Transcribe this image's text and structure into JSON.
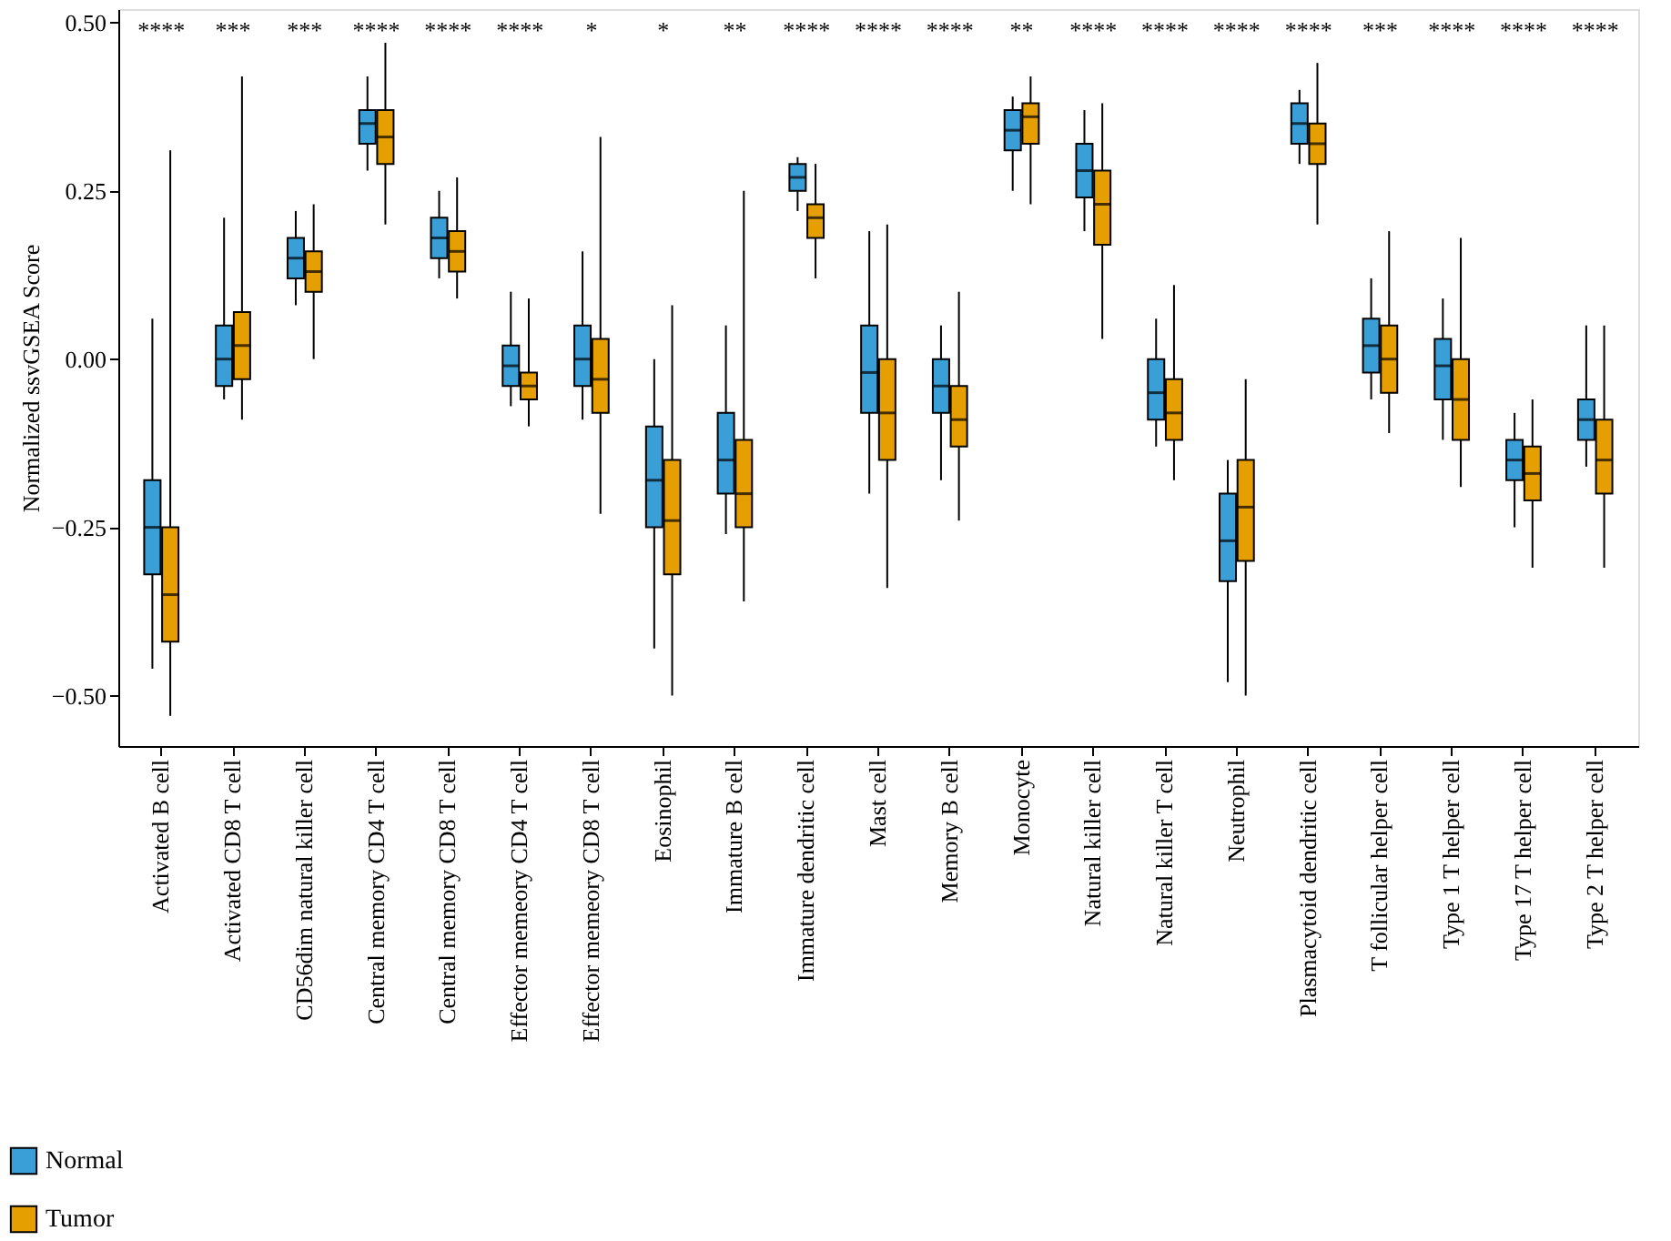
{
  "chart_data": {
    "type": "box",
    "ylabel": "Normalized ssvGSEA Score",
    "categories": [
      "Activated B cell",
      "Activated CD8 T cell",
      "CD56dim natural killer cell",
      "Central memory CD4 T cell",
      "Central memory CD8 T cell",
      "Effector memeory CD4 T cell",
      "Effector memeory CD8 T cell",
      "Eosinophil",
      "Immature B cell",
      "Immature dendritic cell",
      "Mast cell",
      "Memory B cell",
      "Monocyte",
      "Natural killer cell",
      "Natural killer T cell",
      "Neutrophil",
      "Plasmacytoid dendritic cell",
      "T follicular helper cell",
      "Type 1 T helper cell",
      "Type 17 T helper cell",
      "Type 2 T helper cell"
    ],
    "ylim": [
      -0.575,
      0.52
    ],
    "yticks": [
      {
        "value": 0.5,
        "label": "0.50"
      },
      {
        "value": 0.25,
        "label": "0.25"
      },
      {
        "value": 0,
        "label": "0.00"
      },
      {
        "value": -0.25,
        "label": "−0.25"
      },
      {
        "value": -0.5,
        "label": "−0.50"
      }
    ],
    "grid": false,
    "legend": "bottom left",
    "series": [
      {
        "name": "Normal",
        "color": "#3a9fd6",
        "boxes": [
          {
            "low": -0.46,
            "q1": -0.32,
            "median": -0.25,
            "q3": -0.18,
            "high": 0.06
          },
          {
            "low": -0.06,
            "q1": -0.04,
            "median": 0.0,
            "q3": 0.05,
            "high": 0.21
          },
          {
            "low": 0.08,
            "q1": 0.12,
            "median": 0.15,
            "q3": 0.18,
            "high": 0.22
          },
          {
            "low": 0.28,
            "q1": 0.32,
            "median": 0.35,
            "q3": 0.37,
            "high": 0.42
          },
          {
            "low": 0.12,
            "q1": 0.15,
            "median": 0.18,
            "q3": 0.21,
            "high": 0.25
          },
          {
            "low": -0.07,
            "q1": -0.04,
            "median": -0.01,
            "q3": 0.02,
            "high": 0.1
          },
          {
            "low": -0.09,
            "q1": -0.04,
            "median": 0.0,
            "q3": 0.05,
            "high": 0.16
          },
          {
            "low": -0.43,
            "q1": -0.25,
            "median": -0.18,
            "q3": -0.1,
            "high": 0.0
          },
          {
            "low": -0.26,
            "q1": -0.2,
            "median": -0.15,
            "q3": -0.08,
            "high": 0.05
          },
          {
            "low": 0.22,
            "q1": 0.25,
            "median": 0.27,
            "q3": 0.29,
            "high": 0.3
          },
          {
            "low": -0.2,
            "q1": -0.08,
            "median": -0.02,
            "q3": 0.05,
            "high": 0.19
          },
          {
            "low": -0.18,
            "q1": -0.08,
            "median": -0.04,
            "q3": 0.0,
            "high": 0.05
          },
          {
            "low": 0.25,
            "q1": 0.31,
            "median": 0.34,
            "q3": 0.37,
            "high": 0.39
          },
          {
            "low": 0.19,
            "q1": 0.24,
            "median": 0.28,
            "q3": 0.32,
            "high": 0.37
          },
          {
            "low": -0.13,
            "q1": -0.09,
            "median": -0.05,
            "q3": 0.0,
            "high": 0.06
          },
          {
            "low": -0.48,
            "q1": -0.33,
            "median": -0.27,
            "q3": -0.2,
            "high": -0.15
          },
          {
            "low": 0.29,
            "q1": 0.32,
            "median": 0.35,
            "q3": 0.38,
            "high": 0.4
          },
          {
            "low": -0.06,
            "q1": -0.02,
            "median": 0.02,
            "q3": 0.06,
            "high": 0.12
          },
          {
            "low": -0.12,
            "q1": -0.06,
            "median": -0.01,
            "q3": 0.03,
            "high": 0.09
          },
          {
            "low": -0.25,
            "q1": -0.18,
            "median": -0.15,
            "q3": -0.12,
            "high": -0.08
          },
          {
            "low": -0.16,
            "q1": -0.12,
            "median": -0.09,
            "q3": -0.06,
            "high": 0.05
          }
        ]
      },
      {
        "name": "Tumor",
        "color": "#e69f00",
        "boxes": [
          {
            "low": -0.53,
            "q1": -0.42,
            "median": -0.35,
            "q3": -0.25,
            "high": 0.31
          },
          {
            "low": -0.09,
            "q1": -0.03,
            "median": 0.02,
            "q3": 0.07,
            "high": 0.42
          },
          {
            "low": 0.0,
            "q1": 0.1,
            "median": 0.13,
            "q3": 0.16,
            "high": 0.23
          },
          {
            "low": 0.2,
            "q1": 0.29,
            "median": 0.33,
            "q3": 0.37,
            "high": 0.47
          },
          {
            "low": 0.09,
            "q1": 0.13,
            "median": 0.16,
            "q3": 0.19,
            "high": 0.27
          },
          {
            "low": -0.1,
            "q1": -0.06,
            "median": -0.04,
            "q3": -0.02,
            "high": 0.09
          },
          {
            "low": -0.23,
            "q1": -0.08,
            "median": -0.03,
            "q3": 0.03,
            "high": 0.33
          },
          {
            "low": -0.5,
            "q1": -0.32,
            "median": -0.24,
            "q3": -0.15,
            "high": 0.08
          },
          {
            "low": -0.36,
            "q1": -0.25,
            "median": -0.2,
            "q3": -0.12,
            "high": 0.25
          },
          {
            "low": 0.12,
            "q1": 0.18,
            "median": 0.21,
            "q3": 0.23,
            "high": 0.29
          },
          {
            "low": -0.34,
            "q1": -0.15,
            "median": -0.08,
            "q3": 0.0,
            "high": 0.2
          },
          {
            "low": -0.24,
            "q1": -0.13,
            "median": -0.09,
            "q3": -0.04,
            "high": 0.1
          },
          {
            "low": 0.23,
            "q1": 0.32,
            "median": 0.36,
            "q3": 0.38,
            "high": 0.42
          },
          {
            "low": 0.03,
            "q1": 0.17,
            "median": 0.23,
            "q3": 0.28,
            "high": 0.38
          },
          {
            "low": -0.18,
            "q1": -0.12,
            "median": -0.08,
            "q3": -0.03,
            "high": 0.11
          },
          {
            "low": -0.5,
            "q1": -0.3,
            "median": -0.22,
            "q3": -0.15,
            "high": -0.03
          },
          {
            "low": 0.2,
            "q1": 0.29,
            "median": 0.32,
            "q3": 0.35,
            "high": 0.44
          },
          {
            "low": -0.11,
            "q1": -0.05,
            "median": 0.0,
            "q3": 0.05,
            "high": 0.19
          },
          {
            "low": -0.19,
            "q1": -0.12,
            "median": -0.06,
            "q3": 0.0,
            "high": 0.18
          },
          {
            "low": -0.31,
            "q1": -0.21,
            "median": -0.17,
            "q3": -0.13,
            "high": -0.06
          },
          {
            "low": -0.31,
            "q1": -0.2,
            "median": -0.15,
            "q3": -0.09,
            "high": 0.05
          }
        ]
      }
    ],
    "annotations": [
      "****",
      "***",
      "***",
      "****",
      "****",
      "****",
      "*",
      "*",
      "**",
      "****",
      "****",
      "****",
      "**",
      "****",
      "****",
      "****",
      "****",
      "***",
      "****",
      "****",
      "****"
    ]
  }
}
